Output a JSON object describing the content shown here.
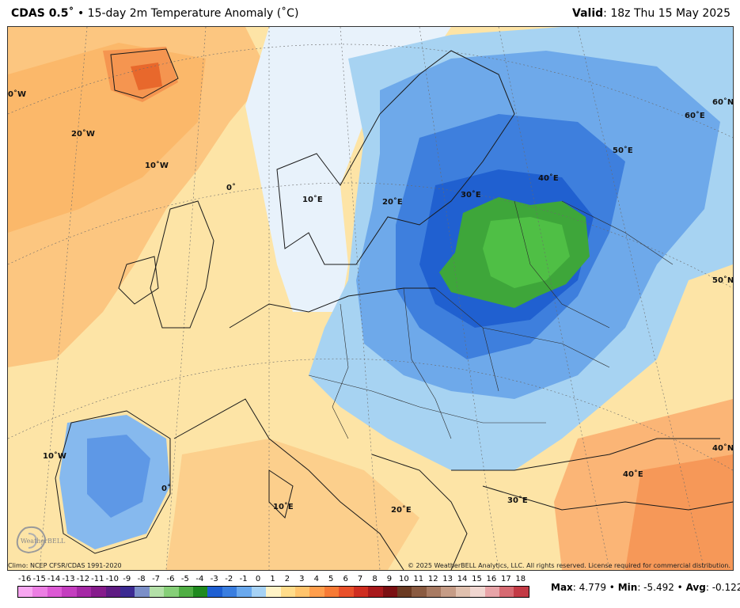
{
  "header": {
    "model": "CDAS 0.5˚",
    "product": " • 15-day 2m Temperature Anomaly (˚C)",
    "valid_label": "Valid",
    "valid_time": ": 18z Thu 15 May 2025"
  },
  "map_labels": [
    {
      "text": "0˚W"
    },
    {
      "text": "20˚W"
    },
    {
      "text": "10˚W"
    },
    {
      "text": "0˚"
    },
    {
      "text": "10˚E"
    },
    {
      "text": "20˚E"
    },
    {
      "text": "30˚E"
    },
    {
      "text": "40˚E"
    },
    {
      "text": "50˚E"
    },
    {
      "text": "60˚E"
    },
    {
      "text": "60˚N"
    },
    {
      "text": "50˚N"
    },
    {
      "text": "40˚N"
    },
    {
      "text": "40˚E"
    },
    {
      "text": "30˚E"
    },
    {
      "text": "20˚E"
    },
    {
      "text": "10˚E"
    },
    {
      "text": "0˚"
    },
    {
      "text": "10˚W"
    }
  ],
  "footer": {
    "climo": "Climo: NCEP CFSR/CDAS 1991-2020",
    "copyright": "© 2025 WeatherBELL Analytics, LLC. All rights reserved. License required for commercial distribution."
  },
  "logo_text": "WeatherBELL",
  "colorbar": {
    "labels": [
      "-16",
      "-15",
      "-14",
      "-13",
      "-12",
      "-11",
      "-10",
      "-9",
      "-8",
      "-7",
      "-6",
      "-5",
      "-4",
      "-3",
      "-2",
      "-1",
      "0",
      "1",
      "2",
      "3",
      "4",
      "5",
      "6",
      "7",
      "8",
      "9",
      "10",
      "11",
      "12",
      "13",
      "14",
      "15",
      "16",
      "17",
      "18"
    ],
    "colors": [
      "#f7a6f0",
      "#ec7ee3",
      "#dc59d4",
      "#c43dbf",
      "#a528a5",
      "#861b8c",
      "#5f1b83",
      "#3c2a92",
      "#7b8fc8",
      "#b3e0a8",
      "#86cf78",
      "#4fae43",
      "#1f8a1f",
      "#1e5fd2",
      "#3a7ee0",
      "#6aa9ee",
      "#a6d2f5",
      "#fff3c6",
      "#ffdc8a",
      "#ffc46c",
      "#ff9e4c",
      "#f77a35",
      "#e9502a",
      "#cf2d20",
      "#a8191b",
      "#7b1012",
      "#6b3a22",
      "#8a5a40",
      "#a87a62",
      "#c69c86",
      "#e0c0ae",
      "#f0d6d0",
      "#e8a4a8",
      "#d76a72",
      "#c33a45"
    ],
    "stats": {
      "max_label": "Max",
      "max": ": 4.779 • ",
      "min_label": "Min",
      "min": ": -5.492 • ",
      "avg_label": "Avg",
      "avg": ": -0.122"
    }
  }
}
